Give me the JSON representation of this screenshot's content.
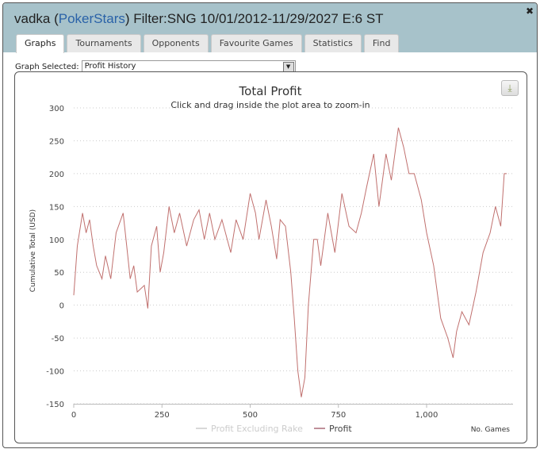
{
  "window": {
    "player": "vadka",
    "site": "PokerStars",
    "filter": "Filter:SNG 10/01/2012-11/29/2027 E:6 ST"
  },
  "tabs": [
    {
      "label": "Graphs"
    },
    {
      "label": "Tournaments"
    },
    {
      "label": "Opponents"
    },
    {
      "label": "Favourite Games"
    },
    {
      "label": "Statistics"
    },
    {
      "label": "Find"
    }
  ],
  "graph_selector": {
    "label": "Graph Selected:",
    "value": "Profit History"
  },
  "colors": {
    "profit": "#c0706e",
    "excl_rake": "#d8d8d8"
  },
  "chart_data": {
    "type": "line",
    "title": "Total Profit",
    "subtitle": "Click and drag inside the plot area to zoom-in",
    "xlabel": "No. Games",
    "ylabel": "Cumulative Total (USD)",
    "xlim": [
      0,
      1250
    ],
    "ylim": [
      -150,
      300
    ],
    "xticks": [
      0,
      250,
      500,
      750,
      1000
    ],
    "xtick_labels": [
      "0",
      "250",
      "500",
      "750",
      "1,000"
    ],
    "yticks": [
      300,
      250,
      200,
      150,
      100,
      50,
      0,
      -50,
      -100,
      -150
    ],
    "grid": true,
    "legend": "bottom-center",
    "series": [
      {
        "name": "Profit Excluding Rake",
        "visible": false,
        "x": [],
        "y": []
      },
      {
        "name": "Profit",
        "visible": true,
        "x": [
          0,
          10,
          25,
          35,
          45,
          55,
          65,
          80,
          90,
          105,
          120,
          140,
          150,
          160,
          170,
          180,
          200,
          210,
          220,
          235,
          245,
          255,
          270,
          285,
          300,
          320,
          340,
          355,
          370,
          385,
          400,
          420,
          445,
          460,
          480,
          500,
          515,
          525,
          545,
          560,
          575,
          585,
          600,
          615,
          625,
          635,
          645,
          655,
          665,
          680,
          690,
          700,
          720,
          740,
          760,
          780,
          800,
          815,
          830,
          850,
          865,
          885,
          900,
          920,
          935,
          950,
          965,
          985,
          1000,
          1020,
          1040,
          1060,
          1075,
          1085,
          1100,
          1120,
          1140,
          1160,
          1180,
          1195,
          1210,
          1220,
          1227
        ],
        "y": [
          15,
          90,
          140,
          110,
          130,
          90,
          60,
          40,
          75,
          40,
          110,
          140,
          90,
          40,
          60,
          20,
          30,
          -5,
          90,
          120,
          50,
          80,
          150,
          110,
          140,
          90,
          130,
          145,
          100,
          140,
          100,
          130,
          80,
          130,
          100,
          170,
          140,
          100,
          160,
          120,
          70,
          130,
          120,
          50,
          -20,
          -100,
          -140,
          -110,
          0,
          100,
          100,
          60,
          140,
          80,
          170,
          120,
          110,
          140,
          180,
          230,
          150,
          230,
          190,
          270,
          240,
          200,
          200,
          160,
          110,
          60,
          -20,
          -50,
          -80,
          -40,
          -10,
          -30,
          20,
          80,
          110,
          150,
          120,
          200,
          200
        ]
      }
    ]
  }
}
